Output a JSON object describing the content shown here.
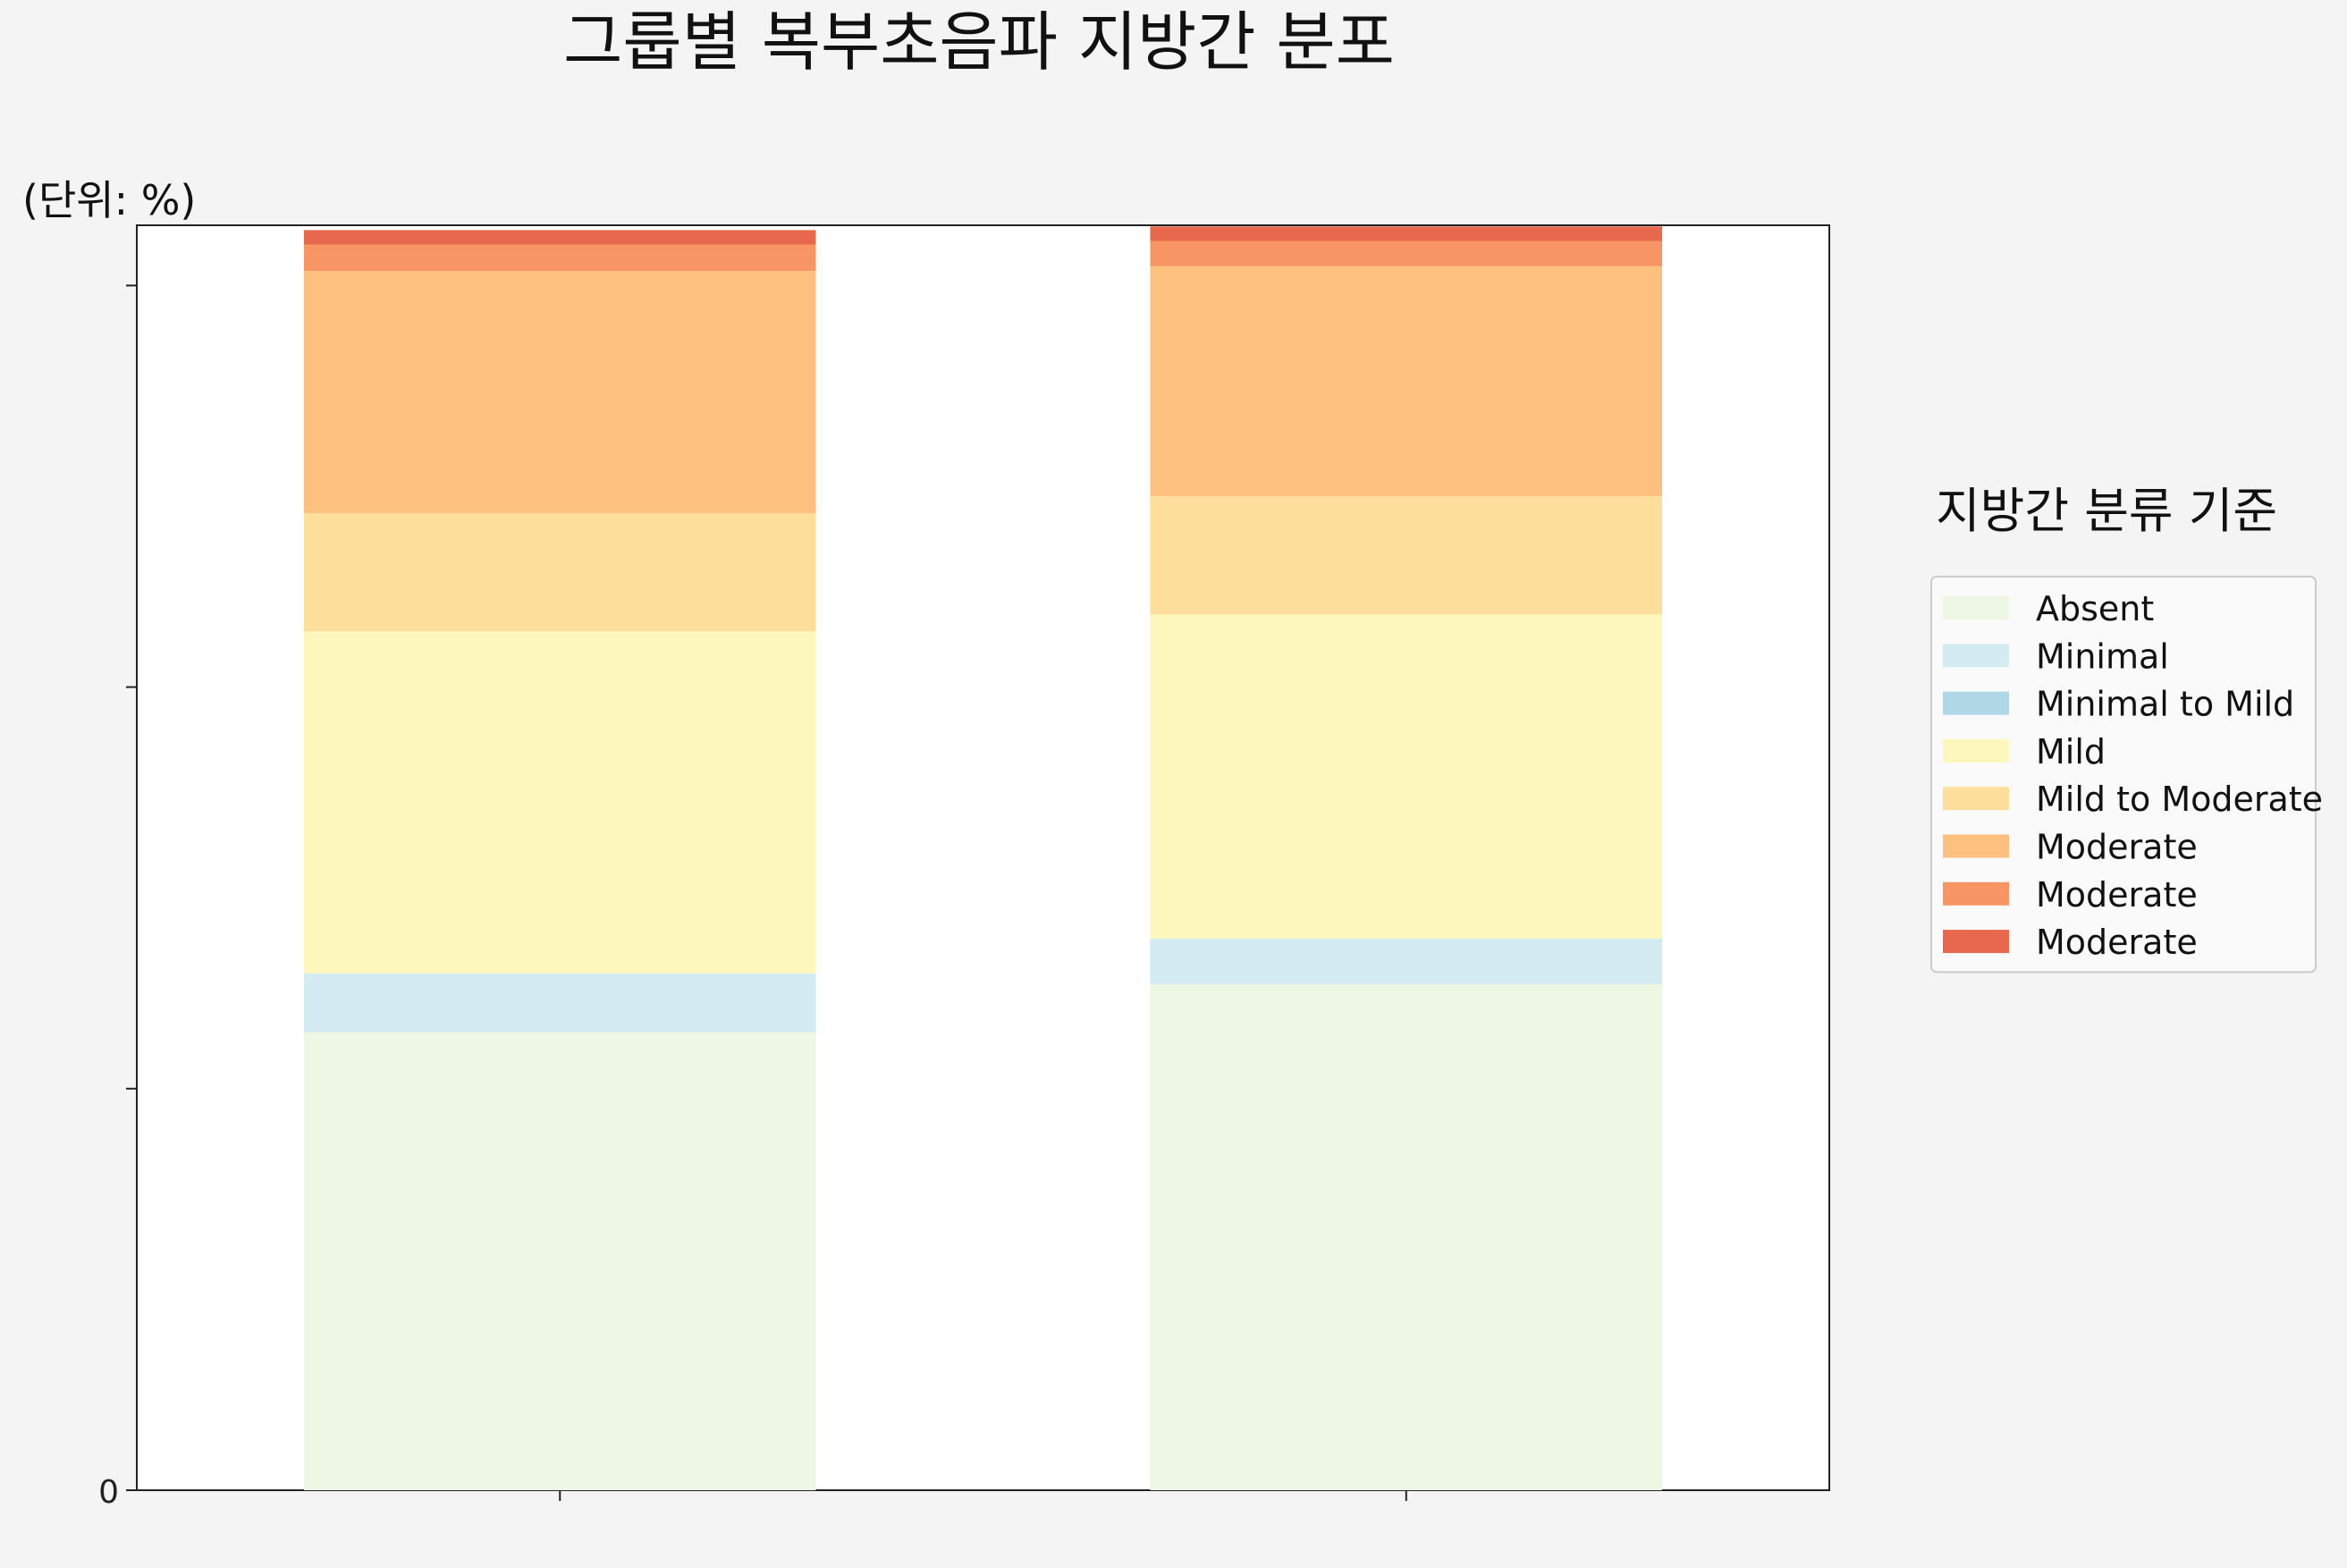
{
  "chart_data": {
    "type": "bar",
    "stacked": true,
    "title": "그룹별 복부초음파 지방간 분포",
    "unit_label": "(단위: %)",
    "xlabel": "",
    "ylabel": "",
    "ylim": [
      0,
      105
    ],
    "grid": false,
    "categories": [
      "",
      ""
    ],
    "y_tick_labels": [
      "0"
    ],
    "legend": {
      "title": "지방간 분류 기준",
      "placement": "right"
    },
    "series": [
      {
        "name": "Absent",
        "color": "#eef7e3",
        "values": [
          38,
          42
        ]
      },
      {
        "name": "Minimal",
        "color": "#d3ebf1",
        "values": [
          4.9,
          3.8
        ]
      },
      {
        "name": "Minimal to Mild",
        "color": "#afd7e6",
        "values": [
          0,
          0
        ]
      },
      {
        "name": "Mild",
        "color": "#fef7bd",
        "values": [
          28.4,
          26.9
        ]
      },
      {
        "name": "Mild to Moderate",
        "color": "#fddf9b",
        "values": [
          9.8,
          9.8
        ]
      },
      {
        "name": "Moderate",
        "color": "#fdc07f",
        "values": [
          20.1,
          19.1
        ]
      },
      {
        "name": "Moderate",
        "color": "#f79565",
        "values": [
          2.2,
          2.1
        ]
      },
      {
        "name": "Moderate",
        "color": "#e8684d",
        "values": [
          1.2,
          1.2
        ]
      }
    ]
  }
}
